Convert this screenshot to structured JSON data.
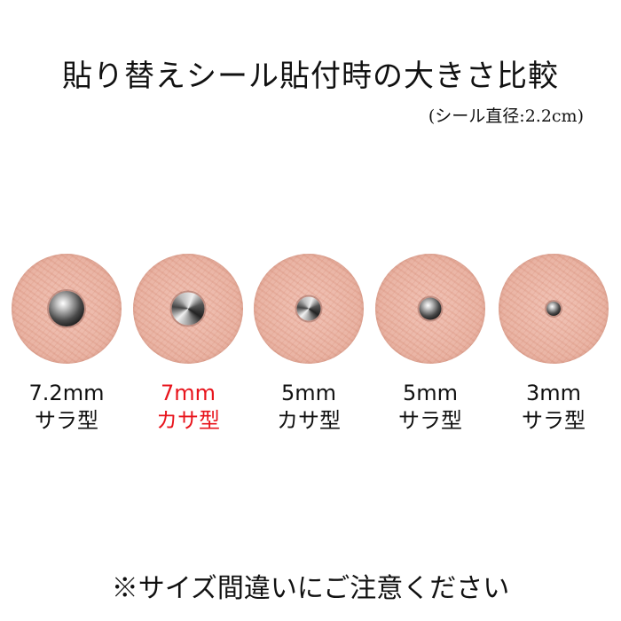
{
  "title": "貼り替えシール貼付時の大きさ比較",
  "subtitle": "(シール直径:2.2cm)",
  "items": [
    {
      "size": "7.2mm",
      "type": "サラ型",
      "highlight": false,
      "stud_mm": 7.2
    },
    {
      "size": "7mm",
      "type": "カサ型",
      "highlight": true,
      "stud_mm": 7
    },
    {
      "size": "5mm",
      "type": "カサ型",
      "highlight": false,
      "stud_mm": 5
    },
    {
      "size": "5mm",
      "type": "サラ型",
      "highlight": false,
      "stud_mm": 5
    },
    {
      "size": "3mm",
      "type": "サラ型",
      "highlight": false,
      "stud_mm": 3
    }
  ],
  "footer": "※サイズ間違いにご注意ください",
  "colors": {
    "highlight": "#e8141c",
    "seal": "#e9b3a3"
  }
}
